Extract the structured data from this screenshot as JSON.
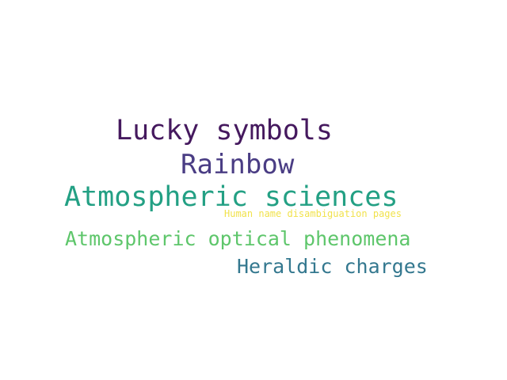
{
  "words": [
    {
      "text": "Lucky symbols",
      "color": "#45195e"
    },
    {
      "text": "Rainbow",
      "color": "#4a3d84"
    },
    {
      "text": "Atmospheric sciences",
      "color": "#23a084"
    },
    {
      "text": "Human name disambiguation pages",
      "color": "#f1e24c"
    },
    {
      "text": "Atmospheric optical phenomena",
      "color": "#5ec66b"
    },
    {
      "text": "Heraldic charges",
      "color": "#34788f"
    }
  ]
}
